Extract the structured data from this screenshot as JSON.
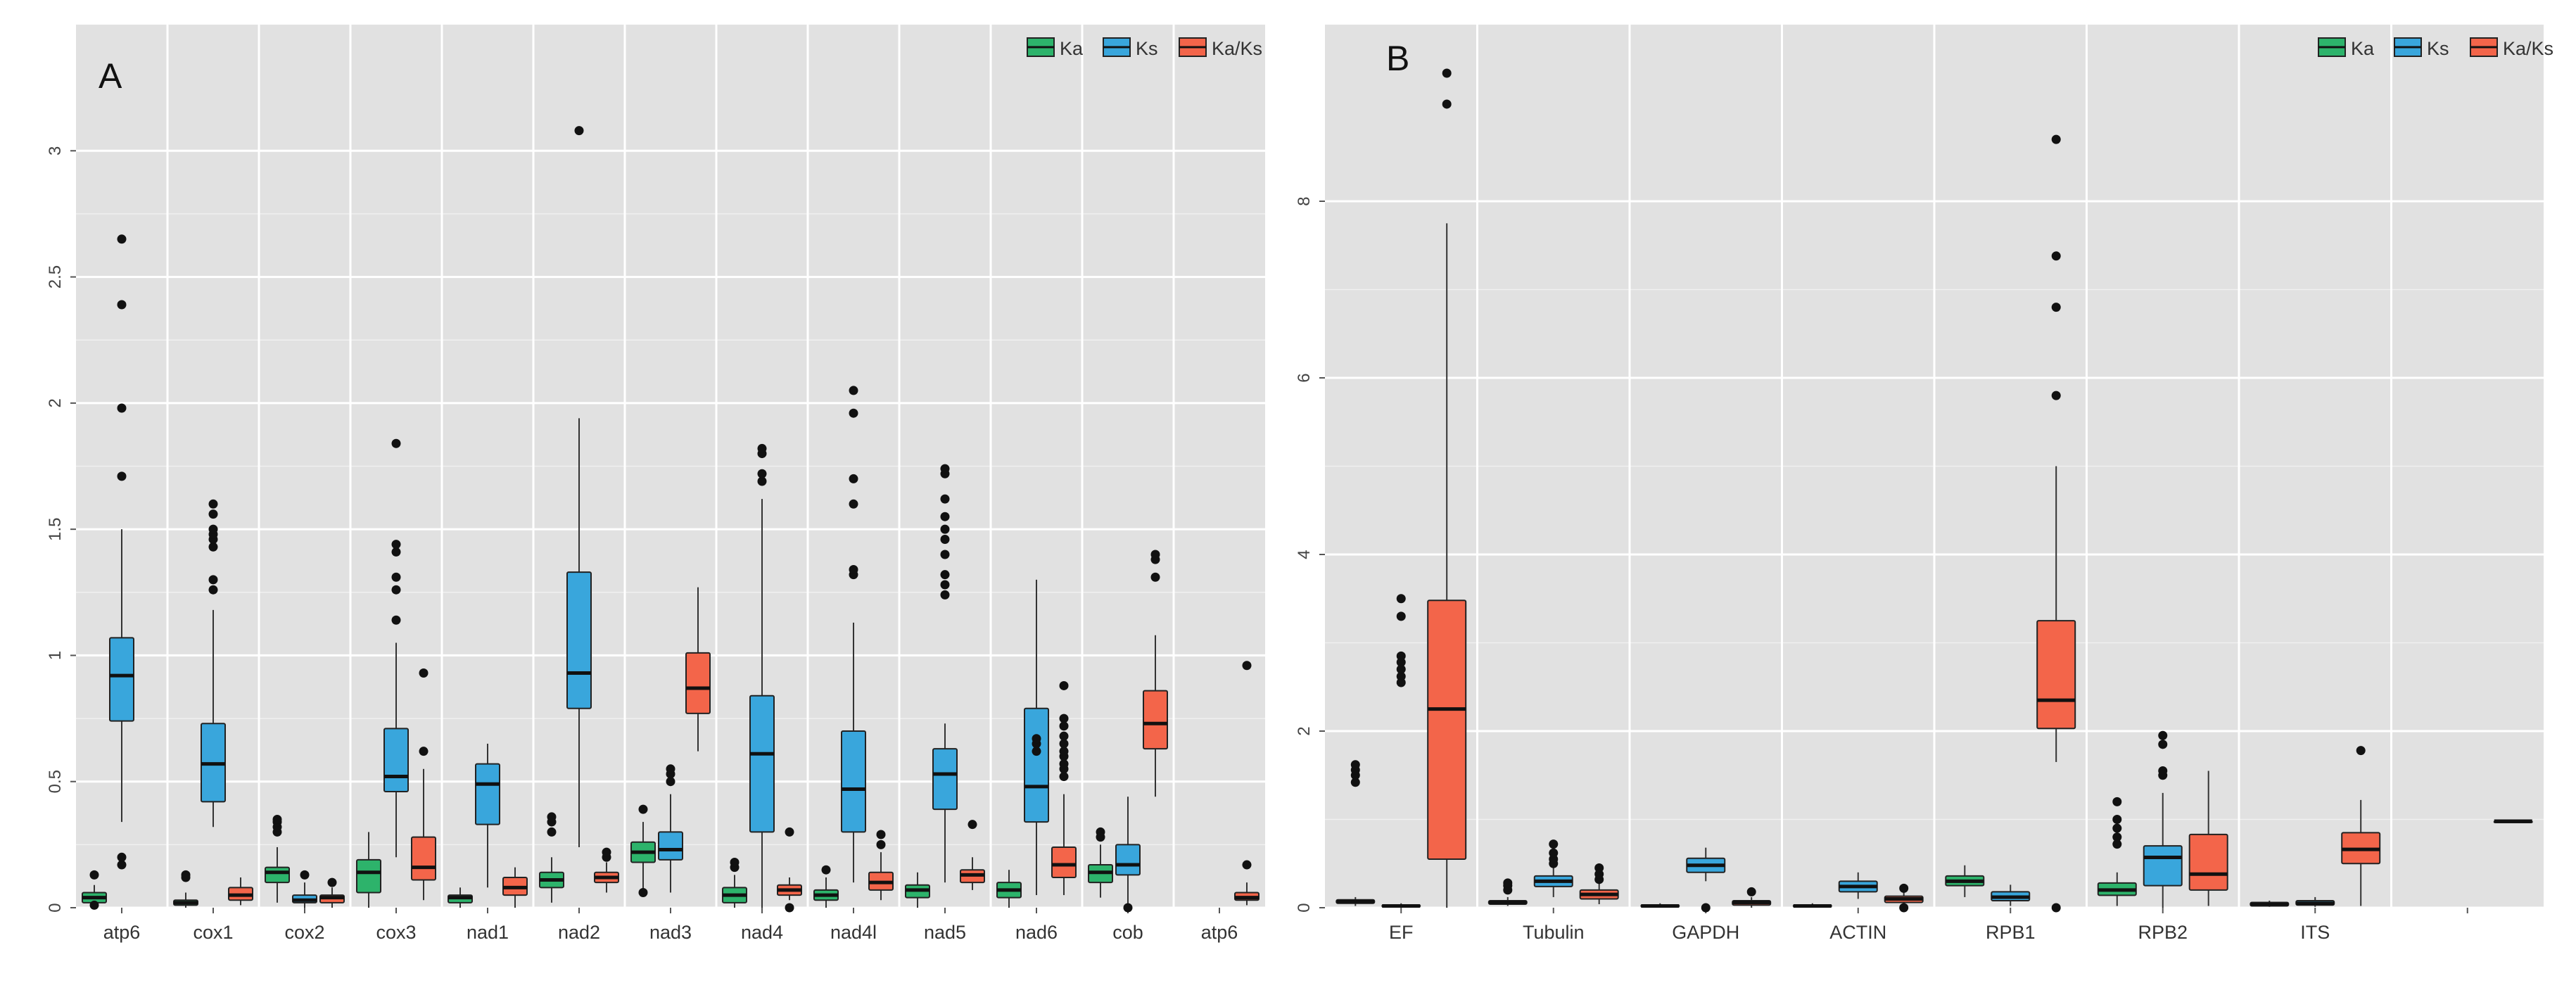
{
  "colors": {
    "Ka": "#2db36b",
    "Ks": "#39a6dc",
    "Ka/Ks": "#f3654a",
    "panel_bg": "#e1e1e1",
    "grid": "#ffffff",
    "median": "#111111",
    "whisker": "#333333"
  },
  "chart_data": [
    {
      "type": "boxplot",
      "panel_label": "A",
      "legend_position": "top-right",
      "series_names": [
        "Ka",
        "Ks",
        "Ka/Ks"
      ],
      "ylim": [
        0,
        3.5
      ],
      "yticks": [
        0,
        0.5,
        1,
        1.5,
        2,
        2.5,
        3
      ],
      "ytick_labels": [
        "0",
        "0.5",
        "1",
        "1.5",
        "2",
        "2.5",
        "3"
      ],
      "categories": [
        "atp6",
        "cox1",
        "cox2",
        "cox3",
        "nad1",
        "nad2",
        "nad3",
        "nad4",
        "nad4l",
        "nad5",
        "nad6",
        "cob",
        "atp6"
      ],
      "series": [
        {
          "name": "Ka",
          "boxes": [
            {
              "min": 0.0,
              "q1": 0.02,
              "median": 0.04,
              "q3": 0.06,
              "max": 0.09,
              "outliers": [
                0.13,
                0.01
              ]
            },
            {
              "min": 0.0,
              "q1": 0.01,
              "median": 0.02,
              "q3": 0.03,
              "max": 0.06,
              "outliers": [
                0.13,
                0.12
              ]
            },
            {
              "min": 0.02,
              "q1": 0.1,
              "median": 0.14,
              "q3": 0.16,
              "max": 0.24,
              "outliers": [
                0.3,
                0.32,
                0.34,
                0.35
              ]
            },
            {
              "min": 0.0,
              "q1": 0.06,
              "median": 0.14,
              "q3": 0.19,
              "max": 0.3,
              "outliers": []
            },
            {
              "min": 0.0,
              "q1": 0.02,
              "median": 0.04,
              "q3": 0.05,
              "max": 0.08,
              "outliers": []
            },
            {
              "min": 0.02,
              "q1": 0.08,
              "median": 0.11,
              "q3": 0.14,
              "max": 0.2,
              "outliers": [
                0.3,
                0.34,
                0.36
              ]
            },
            {
              "min": 0.05,
              "q1": 0.18,
              "median": 0.22,
              "q3": 0.26,
              "max": 0.34,
              "outliers": [
                0.39,
                0.06
              ]
            },
            {
              "min": 0.0,
              "q1": 0.02,
              "median": 0.05,
              "q3": 0.08,
              "max": 0.13,
              "outliers": [
                0.16,
                0.18
              ]
            },
            {
              "min": 0.0,
              "q1": 0.03,
              "median": 0.05,
              "q3": 0.07,
              "max": 0.12,
              "outliers": [
                0.15
              ]
            },
            {
              "min": 0.0,
              "q1": 0.04,
              "median": 0.07,
              "q3": 0.09,
              "max": 0.14,
              "outliers": []
            },
            {
              "min": 0.0,
              "q1": 0.04,
              "median": 0.07,
              "q3": 0.1,
              "max": 0.15,
              "outliers": []
            },
            {
              "min": 0.04,
              "q1": 0.1,
              "median": 0.14,
              "q3": 0.17,
              "max": 0.25,
              "outliers": [
                0.3,
                0.28
              ]
            },
            null
          ]
        },
        {
          "name": "Ks",
          "boxes": [
            {
              "min": 0.34,
              "q1": 0.74,
              "median": 0.92,
              "q3": 1.07,
              "max": 1.5,
              "outliers": [
                1.71,
                1.98,
                2.39,
                2.65,
                0.17,
                0.2
              ]
            },
            {
              "min": 0.32,
              "q1": 0.42,
              "median": 0.57,
              "q3": 0.73,
              "max": 1.18,
              "outliers": [
                1.26,
                1.3,
                1.43,
                1.46,
                1.48,
                1.5,
                1.56,
                1.6
              ]
            },
            {
              "min": 0.0,
              "q1": 0.02,
              "median": 0.03,
              "q3": 0.05,
              "max": 0.1,
              "outliers": [
                0.13
              ]
            },
            {
              "min": 0.2,
              "q1": 0.46,
              "median": 0.52,
              "q3": 0.71,
              "max": 1.05,
              "outliers": [
                1.14,
                1.26,
                1.31,
                1.41,
                1.44,
                1.84
              ]
            },
            {
              "min": 0.08,
              "q1": 0.33,
              "median": 0.49,
              "q3": 0.57,
              "max": 0.65,
              "outliers": []
            },
            {
              "min": 0.24,
              "q1": 0.79,
              "median": 0.93,
              "q3": 1.33,
              "max": 1.94,
              "outliers": [
                3.08
              ]
            },
            {
              "min": 0.06,
              "q1": 0.19,
              "median": 0.23,
              "q3": 0.3,
              "max": 0.45,
              "outliers": [
                0.5,
                0.53,
                0.55
              ]
            },
            {
              "min": 0.0,
              "q1": 0.3,
              "median": 0.61,
              "q3": 0.84,
              "max": 1.62,
              "outliers": [
                1.69,
                1.72,
                1.8,
                1.82
              ]
            },
            {
              "min": 0.1,
              "q1": 0.3,
              "median": 0.47,
              "q3": 0.7,
              "max": 1.13,
              "outliers": [
                1.32,
                1.34,
                1.6,
                1.7,
                1.96,
                2.05
              ]
            },
            {
              "min": 0.1,
              "q1": 0.39,
              "median": 0.53,
              "q3": 0.63,
              "max": 0.73,
              "outliers": [
                1.24,
                1.28,
                1.32,
                1.4,
                1.46,
                1.5,
                1.55,
                1.62,
                1.72,
                1.74
              ]
            },
            {
              "min": 0.05,
              "q1": 0.34,
              "median": 0.48,
              "q3": 0.79,
              "max": 1.3,
              "outliers": [
                0.62,
                0.65,
                0.67
              ]
            },
            {
              "min": 0.0,
              "q1": 0.13,
              "median": 0.17,
              "q3": 0.25,
              "max": 0.44,
              "outliers": [
                0.0
              ]
            },
            null
          ]
        },
        {
          "name": "Ka/Ks",
          "boxes": [
            null,
            {
              "min": 0.01,
              "q1": 0.03,
              "median": 0.05,
              "q3": 0.08,
              "max": 0.12,
              "outliers": []
            },
            {
              "min": 0.0,
              "q1": 0.02,
              "median": 0.04,
              "q3": 0.05,
              "max": 0.08,
              "outliers": [
                0.1
              ]
            },
            {
              "min": 0.03,
              "q1": 0.11,
              "median": 0.16,
              "q3": 0.28,
              "max": 0.55,
              "outliers": [
                0.62,
                0.93
              ]
            },
            {
              "min": 0.0,
              "q1": 0.05,
              "median": 0.08,
              "q3": 0.12,
              "max": 0.16,
              "outliers": []
            },
            {
              "min": 0.06,
              "q1": 0.1,
              "median": 0.12,
              "q3": 0.14,
              "max": 0.18,
              "outliers": [
                0.2,
                0.22
              ]
            },
            {
              "min": 0.62,
              "q1": 0.77,
              "median": 0.87,
              "q3": 1.01,
              "max": 1.27,
              "outliers": []
            },
            {
              "min": 0.03,
              "q1": 0.05,
              "median": 0.07,
              "q3": 0.09,
              "max": 0.12,
              "outliers": [
                0.3,
                0.0
              ]
            },
            {
              "min": 0.03,
              "q1": 0.07,
              "median": 0.1,
              "q3": 0.14,
              "max": 0.22,
              "outliers": [
                0.25,
                0.29
              ]
            },
            {
              "min": 0.07,
              "q1": 0.1,
              "median": 0.13,
              "q3": 0.15,
              "max": 0.2,
              "outliers": [
                0.33
              ]
            },
            {
              "min": 0.05,
              "q1": 0.12,
              "median": 0.17,
              "q3": 0.24,
              "max": 0.45,
              "outliers": [
                0.52,
                0.55,
                0.57,
                0.6,
                0.62,
                0.65,
                0.68,
                0.72,
                0.75,
                0.88
              ]
            },
            {
              "min": 0.44,
              "q1": 0.63,
              "median": 0.73,
              "q3": 0.86,
              "max": 1.08,
              "outliers": [
                1.31,
                1.38,
                1.4
              ]
            },
            {
              "min": 0.01,
              "q1": 0.03,
              "median": 0.04,
              "q3": 0.06,
              "max": 0.1,
              "outliers": [
                0.17,
                0.96
              ]
            }
          ]
        }
      ]
    },
    {
      "type": "boxplot",
      "panel_label": "B",
      "legend_position": "top-right",
      "series_names": [
        "Ka",
        "Ks",
        "Ka/Ks"
      ],
      "ylim": [
        0,
        10
      ],
      "yticks": [
        0,
        2,
        4,
        6,
        8
      ],
      "ytick_labels": [
        "0",
        "2",
        "4",
        "6",
        "8"
      ],
      "categories": [
        "EF",
        "Tubulin",
        "GAPDH",
        "ACTIN",
        "RPB1",
        "RPB2",
        "ITS",
        ""
      ],
      "series": [
        {
          "name": "Ka",
          "boxes": [
            {
              "min": 0.02,
              "q1": 0.05,
              "median": 0.07,
              "q3": 0.09,
              "max": 0.12,
              "outliers": [
                1.42,
                1.5,
                1.56,
                1.62
              ]
            },
            {
              "min": 0.02,
              "q1": 0.04,
              "median": 0.06,
              "q3": 0.08,
              "max": 0.12,
              "outliers": [
                0.2,
                0.25,
                0.28
              ]
            },
            {
              "min": 0.0,
              "q1": 0.01,
              "median": 0.02,
              "q3": 0.03,
              "max": 0.05,
              "outliers": []
            },
            {
              "min": 0.0,
              "q1": 0.01,
              "median": 0.02,
              "q3": 0.03,
              "max": 0.05,
              "outliers": []
            },
            {
              "min": 0.12,
              "q1": 0.25,
              "median": 0.3,
              "q3": 0.36,
              "max": 0.48,
              "outliers": []
            },
            {
              "min": 0.02,
              "q1": 0.14,
              "median": 0.2,
              "q3": 0.28,
              "max": 0.4,
              "outliers": [
                0.72,
                0.8,
                0.9,
                1.0,
                1.2
              ]
            },
            {
              "min": 0.01,
              "q1": 0.02,
              "median": 0.04,
              "q3": 0.06,
              "max": 0.08,
              "outliers": []
            },
            null
          ]
        },
        {
          "name": "Ks",
          "boxes": [
            {
              "min": 0.0,
              "q1": 0.01,
              "median": 0.02,
              "q3": 0.03,
              "max": 0.05,
              "outliers": [
                2.55,
                2.62,
                2.7,
                2.78,
                2.85,
                3.3,
                3.5
              ]
            },
            {
              "min": 0.12,
              "q1": 0.24,
              "median": 0.3,
              "q3": 0.36,
              "max": 0.45,
              "outliers": [
                0.5,
                0.55,
                0.62,
                0.72
              ]
            },
            {
              "min": 0.3,
              "q1": 0.4,
              "median": 0.48,
              "q3": 0.56,
              "max": 0.68,
              "outliers": [
                0.0
              ]
            },
            {
              "min": 0.1,
              "q1": 0.18,
              "median": 0.24,
              "q3": 0.3,
              "max": 0.4,
              "outliers": []
            },
            {
              "min": 0.02,
              "q1": 0.08,
              "median": 0.12,
              "q3": 0.18,
              "max": 0.26,
              "outliers": []
            },
            {
              "min": 0.0,
              "q1": 0.25,
              "median": 0.57,
              "q3": 0.7,
              "max": 1.3,
              "outliers": [
                1.5,
                1.55,
                1.85,
                1.95
              ]
            },
            {
              "min": 0.01,
              "q1": 0.03,
              "median": 0.05,
              "q3": 0.08,
              "max": 0.12,
              "outliers": []
            },
            null
          ]
        },
        {
          "name": "Ka/Ks",
          "boxes": [
            {
              "min": 0.0,
              "q1": 0.55,
              "median": 2.25,
              "q3": 3.48,
              "max": 7.75,
              "outliers": [
                9.1,
                9.45
              ]
            },
            {
              "min": 0.04,
              "q1": 0.1,
              "median": 0.15,
              "q3": 0.2,
              "max": 0.28,
              "outliers": [
                0.32,
                0.38,
                0.45
              ]
            },
            {
              "min": 0.0,
              "q1": 0.03,
              "median": 0.06,
              "q3": 0.08,
              "max": 0.12,
              "outliers": [
                0.18
              ]
            },
            {
              "min": 0.02,
              "q1": 0.06,
              "median": 0.1,
              "q3": 0.13,
              "max": 0.18,
              "outliers": [
                0.0,
                0.22
              ]
            },
            {
              "min": 1.65,
              "q1": 2.03,
              "median": 2.35,
              "q3": 3.25,
              "max": 5.0,
              "outliers": [
                5.8,
                6.8,
                7.38,
                8.7,
                0.0
              ]
            },
            {
              "min": 0.02,
              "q1": 0.2,
              "median": 0.38,
              "q3": 0.83,
              "max": 1.55,
              "outliers": []
            },
            {
              "min": 0.02,
              "q1": 0.5,
              "median": 0.66,
              "q3": 0.85,
              "max": 1.22,
              "outliers": [
                1.78
              ]
            },
            {
              "min": 0.98,
              "q1": 0.98,
              "median": 0.98,
              "q3": 0.98,
              "max": 0.98,
              "outliers": []
            }
          ]
        }
      ]
    }
  ]
}
